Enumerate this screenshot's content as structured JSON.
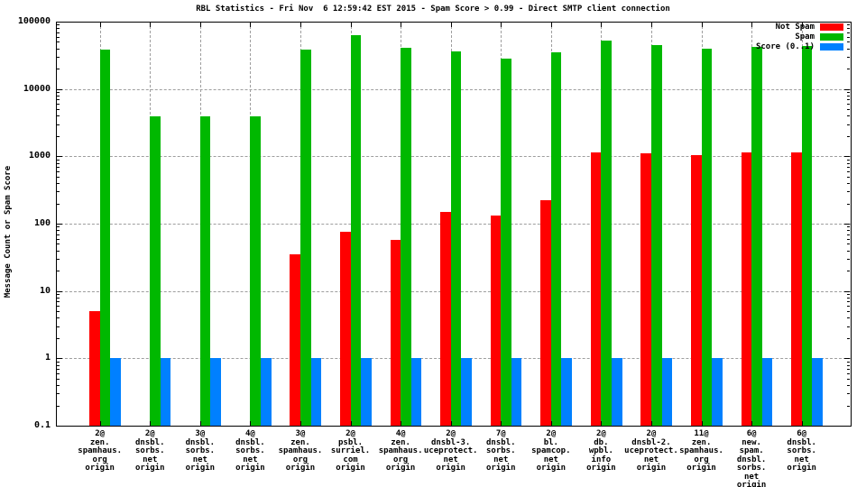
{
  "title": "RBL Statistics - Fri Nov  6 12:59:42 EST 2015 - Spam Score > 0.99 - Direct SMTP client connection",
  "chart_data": {
    "type": "bar",
    "title": "RBL Statistics - Fri Nov  6 12:59:42 EST 2015 - Spam Score > 0.99 - Direct SMTP client connection",
    "xlabel": "",
    "ylabel": "Message Count or Spam Score",
    "yscale": "log",
    "ylim": [
      0.1,
      100000
    ],
    "yticks": [
      100000,
      10000,
      1000,
      100,
      10,
      1,
      0.1
    ],
    "grid": true,
    "legend_position": "top-right",
    "background_color": "#ffffff",
    "gridline_color": "#9e9e9e",
    "categories": [
      [
        "2@",
        "zen.",
        "spamhaus.",
        "org",
        "origin"
      ],
      [
        "2@",
        "dnsbl.",
        "sorbs.",
        "net",
        "origin"
      ],
      [
        "3@",
        "dnsbl.",
        "sorbs.",
        "net",
        "origin"
      ],
      [
        "4@",
        "dnsbl.",
        "sorbs.",
        "net",
        "origin"
      ],
      [
        "3@",
        "zen.",
        "spamhaus.",
        "org",
        "origin"
      ],
      [
        "2@",
        "psbl.",
        "surriel.",
        "com",
        "origin"
      ],
      [
        "4@",
        "zen.",
        "spamhaus.",
        "org",
        "origin"
      ],
      [
        "2@",
        "dnsbl-3.",
        "uceprotect.",
        "net",
        "origin"
      ],
      [
        "7@",
        "dnsbl.",
        "sorbs.",
        "net",
        "origin"
      ],
      [
        "2@",
        "bl.",
        "spamcop.",
        "net",
        "origin"
      ],
      [
        "2@",
        "db.",
        "wpbl.",
        "info",
        "origin"
      ],
      [
        "2@",
        "dnsbl-2.",
        "uceprotect.",
        "net",
        "origin"
      ],
      [
        "11@",
        "zen.",
        "spamhaus.",
        "org",
        "origin"
      ],
      [
        "6@",
        "new.",
        "spam.",
        "dnsbl.",
        "sorbs.",
        "net",
        "origin"
      ],
      [
        "6@",
        "dnsbl.",
        "sorbs.",
        "net",
        "origin"
      ]
    ],
    "series": [
      {
        "name": "Not Spam",
        "color": "#ff0000",
        "values": [
          5,
          0,
          0,
          0,
          35,
          75,
          57,
          150,
          130,
          220,
          1150,
          1100,
          1050,
          1150,
          1150
        ]
      },
      {
        "name": "Spam",
        "color": "#00b800",
        "values": [
          38000,
          3900,
          3900,
          3900,
          39000,
          63000,
          41000,
          36000,
          28000,
          35000,
          52000,
          45000,
          40000,
          42000,
          43000
        ]
      },
      {
        "name": "Score (0..1)",
        "color": "#0080ff",
        "values": [
          1,
          1,
          1,
          1,
          1,
          1,
          1,
          1,
          1,
          1,
          1,
          1,
          1,
          1,
          1
        ]
      }
    ]
  }
}
